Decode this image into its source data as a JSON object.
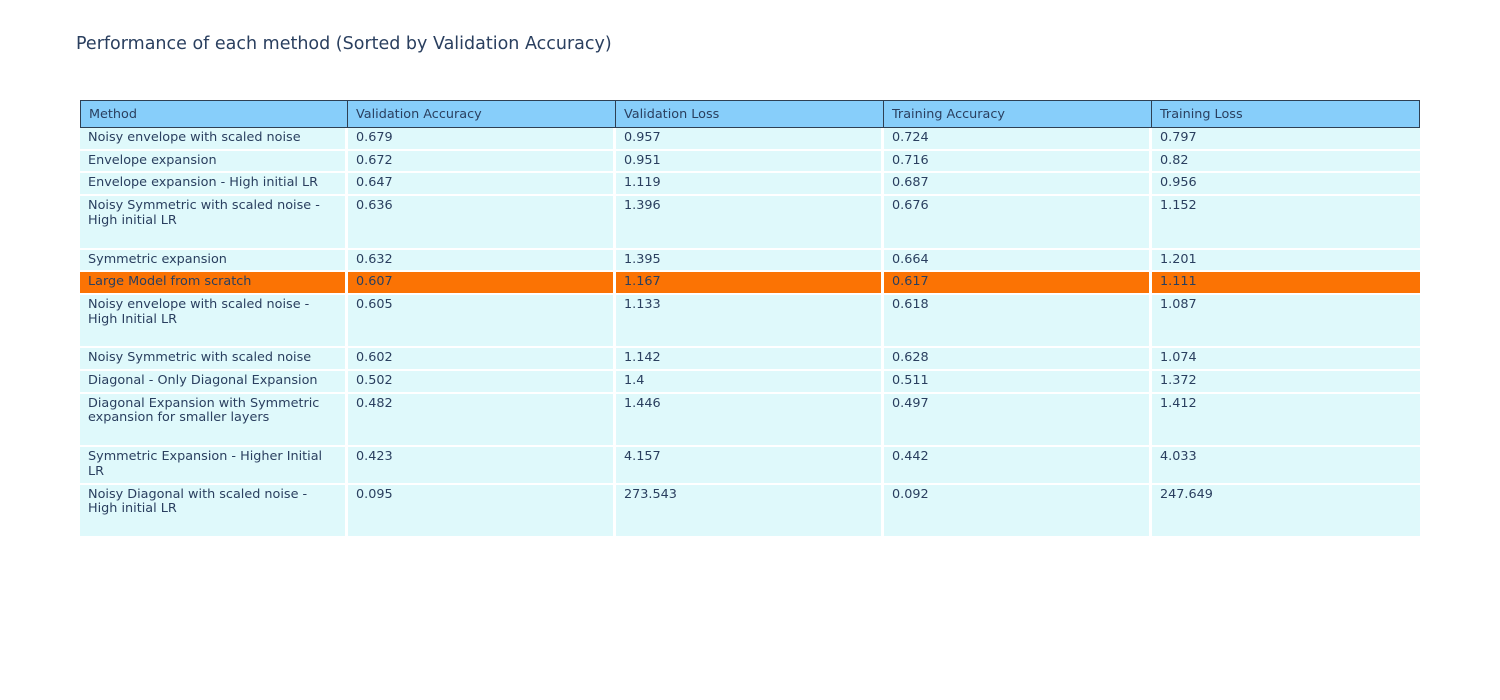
{
  "title": "Performance of each method (Sorted by Validation Accuracy)",
  "colors": {
    "title_text": "#2a3f5f",
    "header_bg": "#87CEFA",
    "header_border": "#2e4053",
    "row_bg": "#DFF9FB",
    "row_separator": "#ffffff",
    "highlight_bg": "#FB7304",
    "cell_text": "#2a3f5f",
    "page_bg": "#ffffff"
  },
  "chart_data": {
    "type": "table",
    "title": "Performance of each method (Sorted by Validation Accuracy)",
    "columns": [
      "Method",
      "Validation Accuracy",
      "Validation Loss",
      "Training Accuracy",
      "Training Loss"
    ],
    "highlighted_row": "Large Model from scratch",
    "rows": [
      {
        "method": "Noisy envelope with scaled noise",
        "validation_accuracy": "0.679",
        "validation_loss": "0.957",
        "training_accuracy": "0.724",
        "training_loss": "0.797"
      },
      {
        "method": "Envelope expansion",
        "validation_accuracy": "0.672",
        "validation_loss": "0.951",
        "training_accuracy": "0.716",
        "training_loss": "0.82"
      },
      {
        "method": "Envelope expansion - High initial LR",
        "validation_accuracy": "0.647",
        "validation_loss": "1.119",
        "training_accuracy": "0.687",
        "training_loss": "0.956"
      },
      {
        "method": "Noisy Symmetric with scaled noise - High initial LR",
        "validation_accuracy": "0.636",
        "validation_loss": "1.396",
        "training_accuracy": "0.676",
        "training_loss": "1.152"
      },
      {
        "method": "Symmetric expansion",
        "validation_accuracy": "0.632",
        "validation_loss": "1.395",
        "training_accuracy": "0.664",
        "training_loss": "1.201"
      },
      {
        "method": "Large Model from scratch",
        "validation_accuracy": "0.607",
        "validation_loss": "1.167",
        "training_accuracy": "0.617",
        "training_loss": "1.111"
      },
      {
        "method": "Noisy envelope with scaled noise - High Initial LR",
        "validation_accuracy": "0.605",
        "validation_loss": "1.133",
        "training_accuracy": "0.618",
        "training_loss": "1.087"
      },
      {
        "method": "Noisy Symmetric with scaled noise",
        "validation_accuracy": "0.602",
        "validation_loss": "1.142",
        "training_accuracy": "0.628",
        "training_loss": "1.074"
      },
      {
        "method": "Diagonal - Only Diagonal Expansion",
        "validation_accuracy": "0.502",
        "validation_loss": "1.4",
        "training_accuracy": "0.511",
        "training_loss": "1.372"
      },
      {
        "method": "Diagonal Expansion with Symmetric expansion for smaller layers",
        "validation_accuracy": "0.482",
        "validation_loss": "1.446",
        "training_accuracy": "0.497",
        "training_loss": "1.412"
      },
      {
        "method": "Symmetric Expansion - Higher Initial LR",
        "validation_accuracy": "0.423",
        "validation_loss": "4.157",
        "training_accuracy": "0.442",
        "training_loss": "4.033"
      },
      {
        "method": "Noisy Diagonal with scaled noise - High initial LR",
        "validation_accuracy": "0.095",
        "validation_loss": "273.543",
        "training_accuracy": "0.092",
        "training_loss": "247.649"
      }
    ]
  }
}
